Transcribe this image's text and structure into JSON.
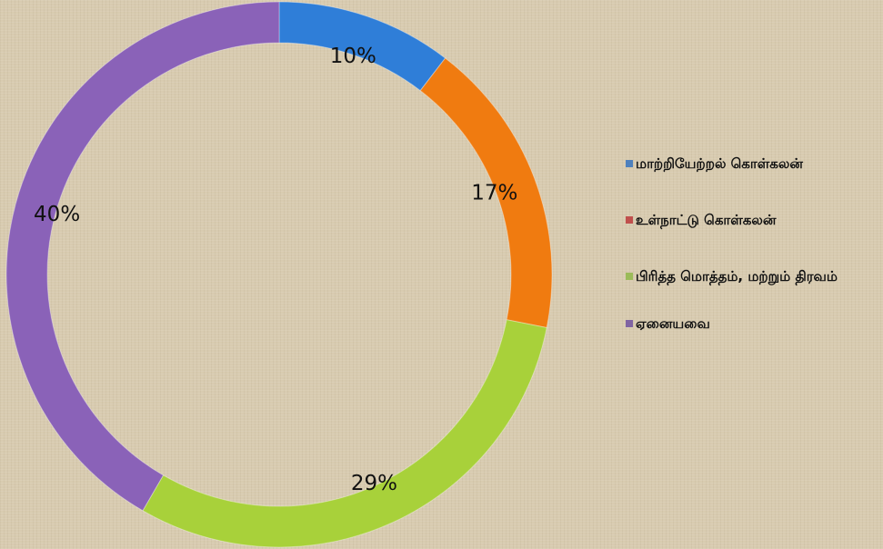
{
  "chart_data": {
    "type": "donut",
    "categories": [
      "மாற்றியேற்றல் கொள்கலன்",
      "உள்நாட்டு கொள்கலன்",
      "பிரித்த மொத்தம், மற்றும் திரவம்",
      "ஏனையவை"
    ],
    "values": [
      10,
      17,
      29,
      40
    ],
    "value_labels": [
      "10%",
      "17%",
      "29%",
      "40%"
    ],
    "colors": [
      "#2f7ed8",
      "#f07b10",
      "#a8d13a",
      "#8a62b8"
    ],
    "legend_colors": [
      "#4f81bd",
      "#c0504d",
      "#9bbb59",
      "#8064a2"
    ],
    "legend": "right"
  }
}
